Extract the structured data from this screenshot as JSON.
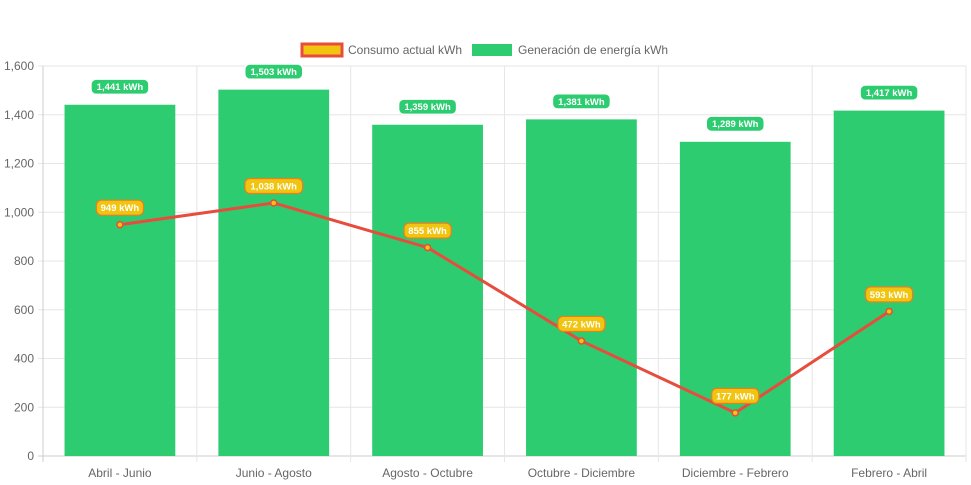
{
  "chart_data": {
    "type": "bar",
    "categories": [
      "Abril - Junio",
      "Junio - Agosto",
      "Agosto - Octubre",
      "Octubre - Diciembre",
      "Diciembre - Febrero",
      "Febrero - Abril"
    ],
    "series": [
      {
        "name": "Consumo actual kWh",
        "type": "line",
        "values": [
          949,
          1038,
          855,
          472,
          177,
          593
        ],
        "labels": [
          "949 kWh",
          "1,038 kWh",
          "855 kWh",
          "472 kWh",
          "177 kWh",
          "593 kWh"
        ],
        "color": "#e74c3c",
        "point_color": "#f1c40f"
      },
      {
        "name": "Generación de energía kWh",
        "type": "bar",
        "values": [
          1441,
          1503,
          1359,
          1381,
          1289,
          1417
        ],
        "labels": [
          "1,441 kWh",
          "1,503 kWh",
          "1,359 kWh",
          "1,381 kWh",
          "1,289 kWh",
          "1,417 kWh"
        ],
        "color": "#2ecc71"
      }
    ],
    "ylim": [
      0,
      1600
    ],
    "y_ticks": [
      "0",
      "200",
      "400",
      "600",
      "800",
      "1,000",
      "1,200",
      "1,400",
      "1,600"
    ],
    "y_tick_values": [
      0,
      200,
      400,
      600,
      800,
      1000,
      1200,
      1400,
      1600
    ],
    "grid": true,
    "legend_position": "top-center",
    "title": "",
    "xlabel": "",
    "ylabel": ""
  }
}
